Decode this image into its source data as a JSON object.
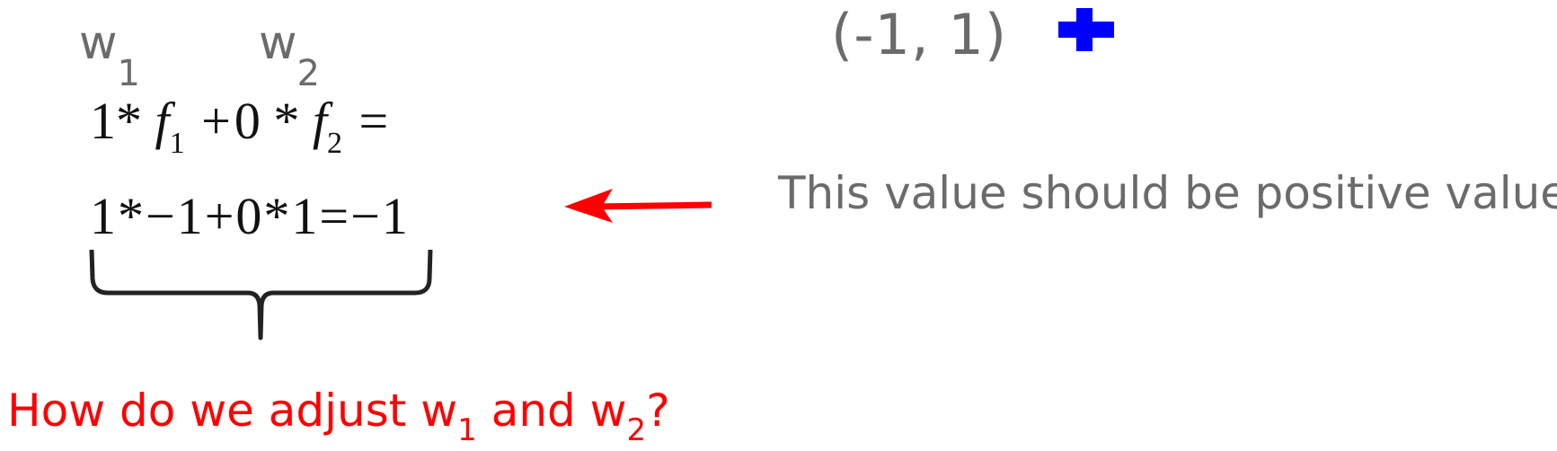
{
  "weights": {
    "w1": {
      "base": "w",
      "sub": "1"
    },
    "w2": {
      "base": "w",
      "sub": "2"
    }
  },
  "equation1": {
    "coef1": "1",
    "mul1": "*",
    "f1": "f",
    "f1_sub": "1",
    "plus": "+",
    "coef2": "0",
    "mul2": "*",
    "f2": "f",
    "f2_sub": "2",
    "equals": "="
  },
  "equation2": {
    "text": "1*−1+0*1=−1"
  },
  "point": {
    "label": "(-1, 1)",
    "marker_color": "#0000ff",
    "marker_icon": "plus-icon"
  },
  "note": {
    "text": "This value should be positive value",
    "arrow_color": "#ff0000"
  },
  "question": {
    "part1": "How do we adjust w",
    "sub1": "1",
    "part2": " and w",
    "sub2": "2",
    "part3": "?",
    "color": "#ff0000"
  }
}
